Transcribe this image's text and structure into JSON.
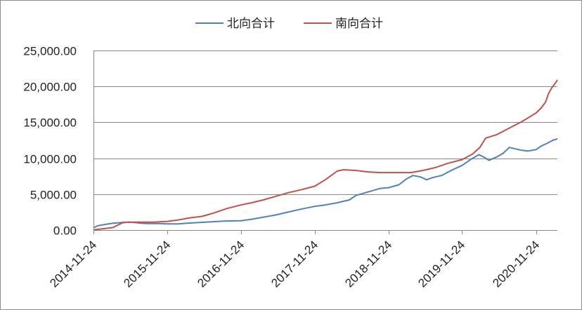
{
  "chart_data": {
    "type": "line",
    "title": "",
    "xlabel": "",
    "ylabel": "",
    "x_ticks": [
      "2014-11-24",
      "2015-11-24",
      "2016-11-24",
      "2017-11-24",
      "2018-11-24",
      "2019-11-24",
      "2020-11-24"
    ],
    "y_ticks": [
      "0.00",
      "5,000.00",
      "10,000.00",
      "15,000.00",
      "20,000.00",
      "25,000.00"
    ],
    "y_tick_values": [
      0,
      5000,
      10000,
      15000,
      20000,
      25000
    ],
    "ylim": [
      0,
      25000
    ],
    "xlim": [
      "2014-11-24",
      "2021-03-10"
    ],
    "grid": true,
    "legend_position": "top",
    "series": [
      {
        "name": "北向合计",
        "color": "#4f81bd",
        "points": [
          [
            "2014-11-24",
            300
          ],
          [
            "2014-12-15",
            600
          ],
          [
            "2015-01-15",
            750
          ],
          [
            "2015-03-01",
            950
          ],
          [
            "2015-04-15",
            1050
          ],
          [
            "2015-05-15",
            1100
          ],
          [
            "2015-06-15",
            1050
          ],
          [
            "2015-07-15",
            950
          ],
          [
            "2015-08-15",
            900
          ],
          [
            "2015-09-15",
            900
          ],
          [
            "2015-10-15",
            900
          ],
          [
            "2015-11-24",
            850
          ],
          [
            "2016-01-15",
            850
          ],
          [
            "2016-03-01",
            950
          ],
          [
            "2016-05-01",
            1050
          ],
          [
            "2016-07-01",
            1150
          ],
          [
            "2016-09-01",
            1250
          ],
          [
            "2016-11-24",
            1300
          ],
          [
            "2017-01-15",
            1500
          ],
          [
            "2017-03-15",
            1800
          ],
          [
            "2017-05-15",
            2100
          ],
          [
            "2017-07-15",
            2500
          ],
          [
            "2017-09-15",
            2900
          ],
          [
            "2017-11-24",
            3300
          ],
          [
            "2018-01-15",
            3500
          ],
          [
            "2018-03-15",
            3800
          ],
          [
            "2018-05-15",
            4200
          ],
          [
            "2018-06-15",
            4800
          ],
          [
            "2018-08-15",
            5300
          ],
          [
            "2018-10-15",
            5800
          ],
          [
            "2018-11-24",
            5900
          ],
          [
            "2019-01-15",
            6300
          ],
          [
            "2019-02-20",
            7100
          ],
          [
            "2019-03-25",
            7600
          ],
          [
            "2019-05-01",
            7400
          ],
          [
            "2019-06-01",
            7000
          ],
          [
            "2019-07-01",
            7300
          ],
          [
            "2019-08-15",
            7600
          ],
          [
            "2019-10-01",
            8300
          ],
          [
            "2019-11-24",
            9000
          ],
          [
            "2020-01-10",
            9900
          ],
          [
            "2020-02-15",
            10500
          ],
          [
            "2020-03-15",
            10100
          ],
          [
            "2020-04-05",
            9700
          ],
          [
            "2020-05-15",
            10200
          ],
          [
            "2020-06-15",
            10700
          ],
          [
            "2020-07-15",
            11500
          ],
          [
            "2020-08-15",
            11300
          ],
          [
            "2020-09-15",
            11100
          ],
          [
            "2020-10-15",
            11000
          ],
          [
            "2020-11-24",
            11200
          ],
          [
            "2020-12-20",
            11700
          ],
          [
            "2021-01-20",
            12100
          ],
          [
            "2021-02-15",
            12500
          ],
          [
            "2021-03-10",
            12700
          ]
        ]
      },
      {
        "name": "南向合计",
        "color": "#c0504d",
        "points": [
          [
            "2014-11-24",
            0
          ],
          [
            "2014-12-15",
            100
          ],
          [
            "2015-01-15",
            200
          ],
          [
            "2015-03-01",
            350
          ],
          [
            "2015-04-15",
            1000
          ],
          [
            "2015-05-15",
            1100
          ],
          [
            "2015-06-15",
            1100
          ],
          [
            "2015-07-15",
            1100
          ],
          [
            "2015-09-15",
            1100
          ],
          [
            "2015-11-24",
            1200
          ],
          [
            "2016-01-15",
            1400
          ],
          [
            "2016-03-15",
            1700
          ],
          [
            "2016-05-15",
            1900
          ],
          [
            "2016-07-15",
            2400
          ],
          [
            "2016-09-15",
            3000
          ],
          [
            "2016-11-24",
            3500
          ],
          [
            "2017-01-15",
            3800
          ],
          [
            "2017-03-15",
            4200
          ],
          [
            "2017-05-15",
            4700
          ],
          [
            "2017-07-15",
            5200
          ],
          [
            "2017-09-15",
            5600
          ],
          [
            "2017-11-24",
            6100
          ],
          [
            "2018-01-15",
            7000
          ],
          [
            "2018-03-15",
            8200
          ],
          [
            "2018-04-15",
            8400
          ],
          [
            "2018-06-15",
            8300
          ],
          [
            "2018-08-15",
            8100
          ],
          [
            "2018-10-15",
            8000
          ],
          [
            "2018-11-24",
            8000
          ],
          [
            "2019-01-15",
            8000
          ],
          [
            "2019-03-15",
            8000
          ],
          [
            "2019-05-15",
            8300
          ],
          [
            "2019-07-15",
            8700
          ],
          [
            "2019-09-15",
            9300
          ],
          [
            "2019-11-24",
            9800
          ],
          [
            "2020-01-15",
            10600
          ],
          [
            "2020-02-20",
            11500
          ],
          [
            "2020-03-20",
            12800
          ],
          [
            "2020-05-15",
            13300
          ],
          [
            "2020-07-15",
            14200
          ],
          [
            "2020-09-15",
            15100
          ],
          [
            "2020-11-24",
            16300
          ],
          [
            "2020-12-20",
            17000
          ],
          [
            "2021-01-10",
            17800
          ],
          [
            "2021-01-25",
            19000
          ],
          [
            "2021-02-10",
            19800
          ],
          [
            "2021-03-01",
            20500
          ],
          [
            "2021-03-10",
            20900
          ]
        ]
      }
    ]
  }
}
